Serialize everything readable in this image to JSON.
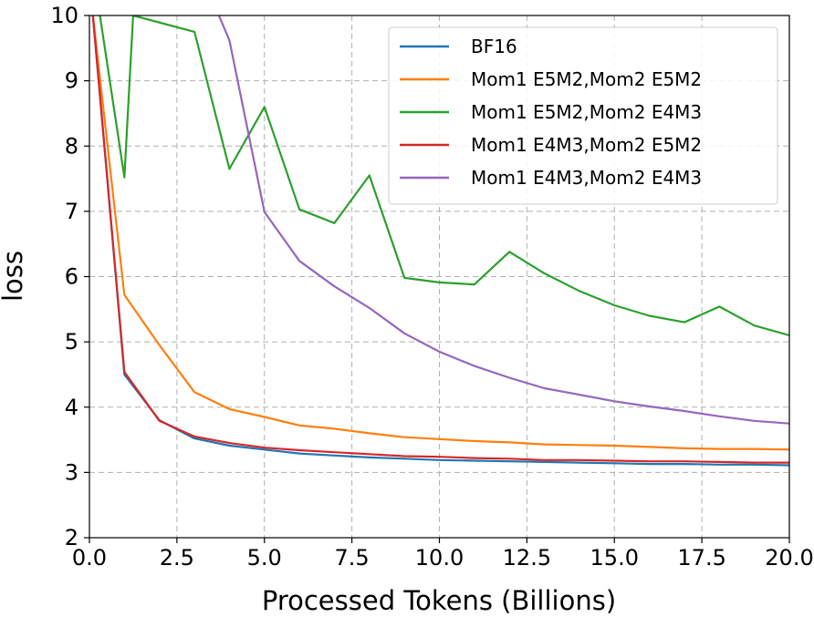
{
  "chart_data": {
    "type": "line",
    "xlabel": "Processed Tokens (Billions)",
    "ylabel": "loss",
    "xlim": [
      0,
      20
    ],
    "ylim": [
      2,
      10
    ],
    "xticks": [
      "0.0",
      "2.5",
      "5.0",
      "7.5",
      "10.0",
      "12.5",
      "15.0",
      "17.5",
      "20.0"
    ],
    "yticks": [
      "2",
      "3",
      "4",
      "5",
      "6",
      "7",
      "8",
      "9",
      "10"
    ],
    "grid": true,
    "legend_position": "top-right",
    "series": [
      {
        "name": "BF16",
        "color": "#1f77b4",
        "x": [
          0.1,
          1,
          2,
          3,
          4,
          5,
          6,
          7,
          8,
          9,
          10,
          11,
          12,
          13,
          14,
          15,
          16,
          17,
          18,
          19,
          20
        ],
        "y": [
          10.0,
          4.5,
          3.8,
          3.52,
          3.41,
          3.35,
          3.29,
          3.26,
          3.23,
          3.21,
          3.19,
          3.18,
          3.17,
          3.16,
          3.15,
          3.14,
          3.13,
          3.13,
          3.12,
          3.12,
          3.11
        ]
      },
      {
        "name": "Mom1 E5M2,Mom2 E5M2",
        "color": "#ff7f0e",
        "x": [
          0.1,
          1,
          2,
          3,
          4,
          5,
          6,
          7,
          8,
          9,
          10,
          11,
          12,
          13,
          14,
          15,
          16,
          17,
          18,
          19,
          20
        ],
        "y": [
          10.0,
          5.72,
          4.95,
          4.23,
          3.97,
          3.85,
          3.72,
          3.67,
          3.6,
          3.54,
          3.51,
          3.48,
          3.46,
          3.43,
          3.42,
          3.41,
          3.39,
          3.37,
          3.36,
          3.36,
          3.35
        ]
      },
      {
        "name": "Mom1 E5M2,Mom2 E4M3",
        "color": "#2ca02c",
        "x": [
          0.3,
          1,
          1.25,
          3,
          4,
          5,
          6,
          7,
          8,
          9,
          10,
          11,
          12,
          13,
          14,
          15,
          16,
          17,
          18,
          19,
          20
        ],
        "y": [
          10.0,
          7.52,
          10.0,
          9.75,
          7.65,
          8.6,
          7.03,
          6.82,
          7.55,
          5.98,
          5.91,
          5.88,
          6.38,
          6.05,
          5.78,
          5.56,
          5.4,
          5.3,
          5.54,
          5.25,
          5.1
        ]
      },
      {
        "name": "Mom1 E4M3,Mom2 E5M2",
        "color": "#d62728",
        "x": [
          0.1,
          1,
          2,
          3,
          4,
          5,
          6,
          7,
          8,
          9,
          10,
          11,
          12,
          13,
          14,
          15,
          16,
          17,
          18,
          19,
          20
        ],
        "y": [
          10.0,
          4.54,
          3.79,
          3.55,
          3.45,
          3.38,
          3.34,
          3.31,
          3.28,
          3.25,
          3.24,
          3.22,
          3.21,
          3.19,
          3.19,
          3.18,
          3.17,
          3.17,
          3.16,
          3.15,
          3.15
        ]
      },
      {
        "name": "Mom1 E4M3,Mom2 E4M3",
        "color": "#9467bd",
        "x": [
          3.7,
          4,
          5,
          6,
          7,
          8,
          9,
          10,
          11,
          12,
          13,
          14,
          15,
          16,
          17,
          18,
          19,
          20
        ],
        "y": [
          10.0,
          9.62,
          6.99,
          6.24,
          5.85,
          5.52,
          5.13,
          4.85,
          4.63,
          4.45,
          4.29,
          4.19,
          4.09,
          4.01,
          3.94,
          3.86,
          3.79,
          3.75
        ]
      }
    ]
  }
}
